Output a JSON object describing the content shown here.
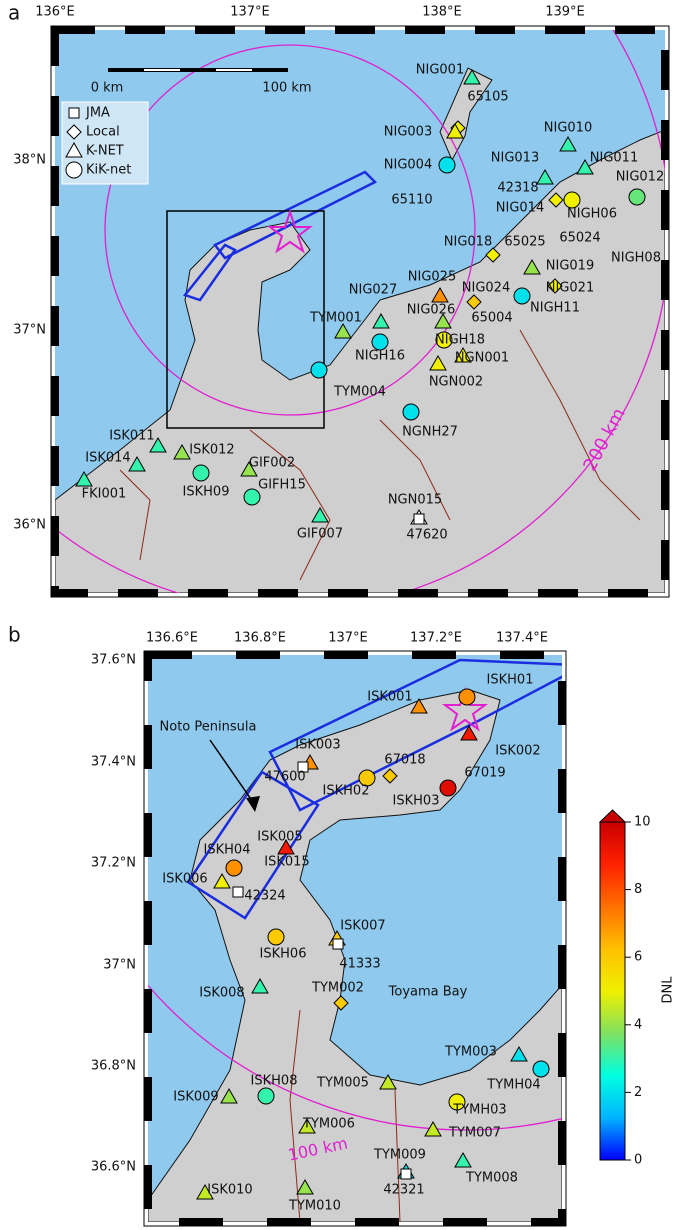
{
  "panel_a": {
    "label": "a",
    "lon_ticks": [
      "136°E",
      "137°E",
      "138°E",
      "139°E"
    ],
    "lat_ticks": [
      "38°N",
      "37°N",
      "36°N"
    ],
    "scale_bar": [
      "0 km",
      "100 km"
    ],
    "legend": [
      "JMA",
      "Local",
      "K-NET",
      "KiK-net"
    ],
    "distance_label": "200 km",
    "stations": [
      {
        "name": "NIG001",
        "dnl": 3
      },
      {
        "name": "65105",
        "dnl": 5
      },
      {
        "name": "NIG003",
        "dnl": 5
      },
      {
        "name": "NIG004",
        "dnl": 2
      },
      {
        "name": "65110"
      },
      {
        "name": "NIG010",
        "dnl": 3
      },
      {
        "name": "NIG013",
        "dnl": 3
      },
      {
        "name": "NIG011",
        "dnl": 3
      },
      {
        "name": "42318"
      },
      {
        "name": "NIG012",
        "dnl": 3.5
      },
      {
        "name": "NIG014",
        "dnl": 5
      },
      {
        "name": "NIGH06",
        "dnl": 5
      },
      {
        "name": "65024"
      },
      {
        "name": "NIGH08"
      },
      {
        "name": "NIG018",
        "dnl": 5
      },
      {
        "name": "65025"
      },
      {
        "name": "NIG019",
        "dnl": 4
      },
      {
        "name": "NIG021",
        "dnl": 5
      },
      {
        "name": "NIGH11",
        "dnl": 2
      },
      {
        "name": "NIG025",
        "dnl": 7
      },
      {
        "name": "NIG024",
        "dnl": 6
      },
      {
        "name": "NIG027",
        "dnl": 3
      },
      {
        "name": "NIG026",
        "dnl": 4
      },
      {
        "name": "65004"
      },
      {
        "name": "TYM001",
        "dnl": 4
      },
      {
        "name": "NIGH18",
        "dnl": 5
      },
      {
        "name": "NIGH16",
        "dnl": 2
      },
      {
        "name": "NGN001",
        "dnl": 5
      },
      {
        "name": "NGN002",
        "dnl": 5
      },
      {
        "name": "TYM004",
        "dnl": 2
      },
      {
        "name": "NGNH27",
        "dnl": 2
      },
      {
        "name": "ISK011",
        "dnl": 3
      },
      {
        "name": "ISK014",
        "dnl": 3
      },
      {
        "name": "ISK012",
        "dnl": 4
      },
      {
        "name": "GIF002",
        "dnl": 4
      },
      {
        "name": "FKI001",
        "dnl": 3
      },
      {
        "name": "ISKH09",
        "dnl": 3
      },
      {
        "name": "GIFH15",
        "dnl": 3
      },
      {
        "name": "GIF007",
        "dnl": 3
      },
      {
        "name": "NGN015"
      },
      {
        "name": "47620"
      }
    ]
  },
  "panel_b": {
    "label": "b",
    "lon_ticks": [
      "136.6°E",
      "136.8°E",
      "137°E",
      "137.2°E",
      "137.4°E"
    ],
    "lat_ticks": [
      "37.6°N",
      "37.4°N",
      "37.2°N",
      "37°N",
      "36.8°N",
      "36.6°N"
    ],
    "annotations": [
      "Noto Peninsula",
      "Toyama Bay",
      "100 km"
    ],
    "stations": [
      {
        "name": "ISK001",
        "dnl": 7
      },
      {
        "name": "ISKH01",
        "dnl": 7
      },
      {
        "name": "ISK002",
        "dnl": 9
      },
      {
        "name": "ISK003",
        "dnl": 7
      },
      {
        "name": "67018",
        "dnl": 6
      },
      {
        "name": "47600"
      },
      {
        "name": "ISKH02",
        "dnl": 6
      },
      {
        "name": "67019"
      },
      {
        "name": "ISKH03",
        "dnl": 9.5
      },
      {
        "name": "ISK005"
      },
      {
        "name": "ISK015",
        "dnl": 9
      },
      {
        "name": "ISKH04",
        "dnl": 7
      },
      {
        "name": "ISK006",
        "dnl": 5
      },
      {
        "name": "42324"
      },
      {
        "name": "ISK007",
        "dnl": 6
      },
      {
        "name": "ISKH06",
        "dnl": 6
      },
      {
        "name": "41333"
      },
      {
        "name": "ISK008",
        "dnl": 3
      },
      {
        "name": "TYM002",
        "dnl": 6
      },
      {
        "name": "TYM003",
        "dnl": 2
      },
      {
        "name": "TYMH04",
        "dnl": 2
      },
      {
        "name": "ISK009",
        "dnl": 4
      },
      {
        "name": "ISKH08",
        "dnl": 3
      },
      {
        "name": "TYM005",
        "dnl": 4.5
      },
      {
        "name": "TYMH03",
        "dnl": 5
      },
      {
        "name": "TYM006",
        "dnl": 4.5
      },
      {
        "name": "TYM007",
        "dnl": 4.5
      },
      {
        "name": "TYM009",
        "dnl": 2
      },
      {
        "name": "42321"
      },
      {
        "name": "TYM008",
        "dnl": 3
      },
      {
        "name": "ISK010",
        "dnl": 4.5
      },
      {
        "name": "TYM010",
        "dnl": 4
      }
    ]
  },
  "colorbar": {
    "title": "DNL",
    "ticks": [
      0,
      2,
      4,
      6,
      8,
      10
    ],
    "lim": [
      0,
      10
    ],
    "colors": [
      "#0000ff",
      "#00b4ff",
      "#00ffe0",
      "#80e060",
      "#f0f000",
      "#ffc000",
      "#ff7000",
      "#ff2000",
      "#c80000"
    ]
  }
}
